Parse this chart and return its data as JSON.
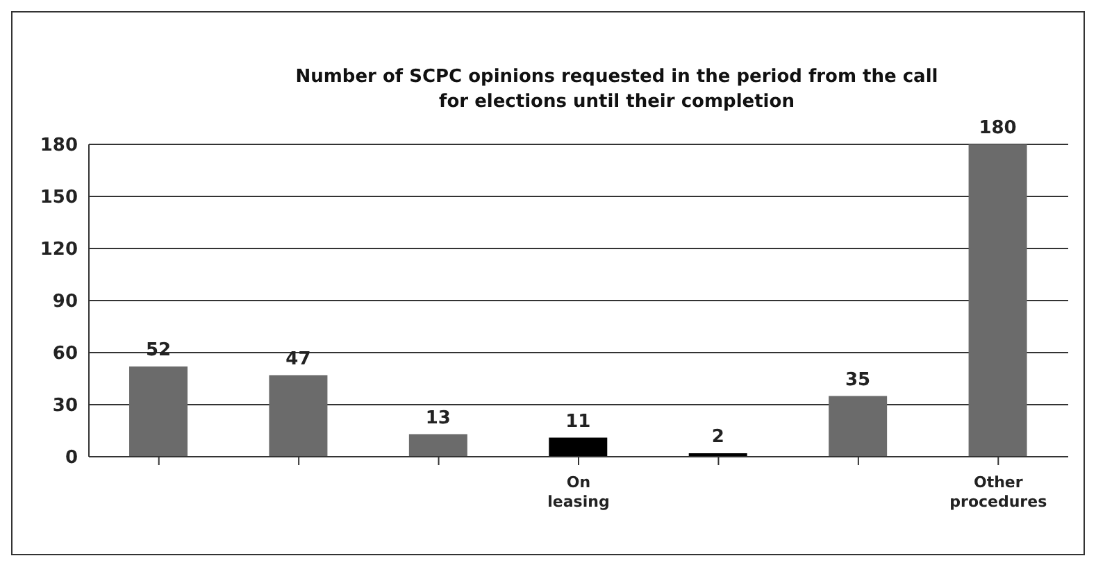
{
  "chart_data": {
    "type": "bar",
    "title": "Number of SCPC opinions requested in the period from the call for elections until their completion",
    "categories": [
      null,
      null,
      null,
      "On leasing",
      null,
      null,
      "Other procedures"
    ],
    "values": [
      52,
      47,
      13,
      11,
      2,
      35,
      180
    ],
    "colors": [
      "#6b6b6b",
      "#6b6b6b",
      "#6b6b6b",
      "#000000",
      "#000000",
      "#6b6b6b",
      "#6b6b6b"
    ],
    "ylim": [
      0,
      180
    ],
    "yticks": [
      0,
      30,
      60,
      90,
      120,
      150,
      180
    ],
    "grid": "y",
    "data_labels": true
  }
}
